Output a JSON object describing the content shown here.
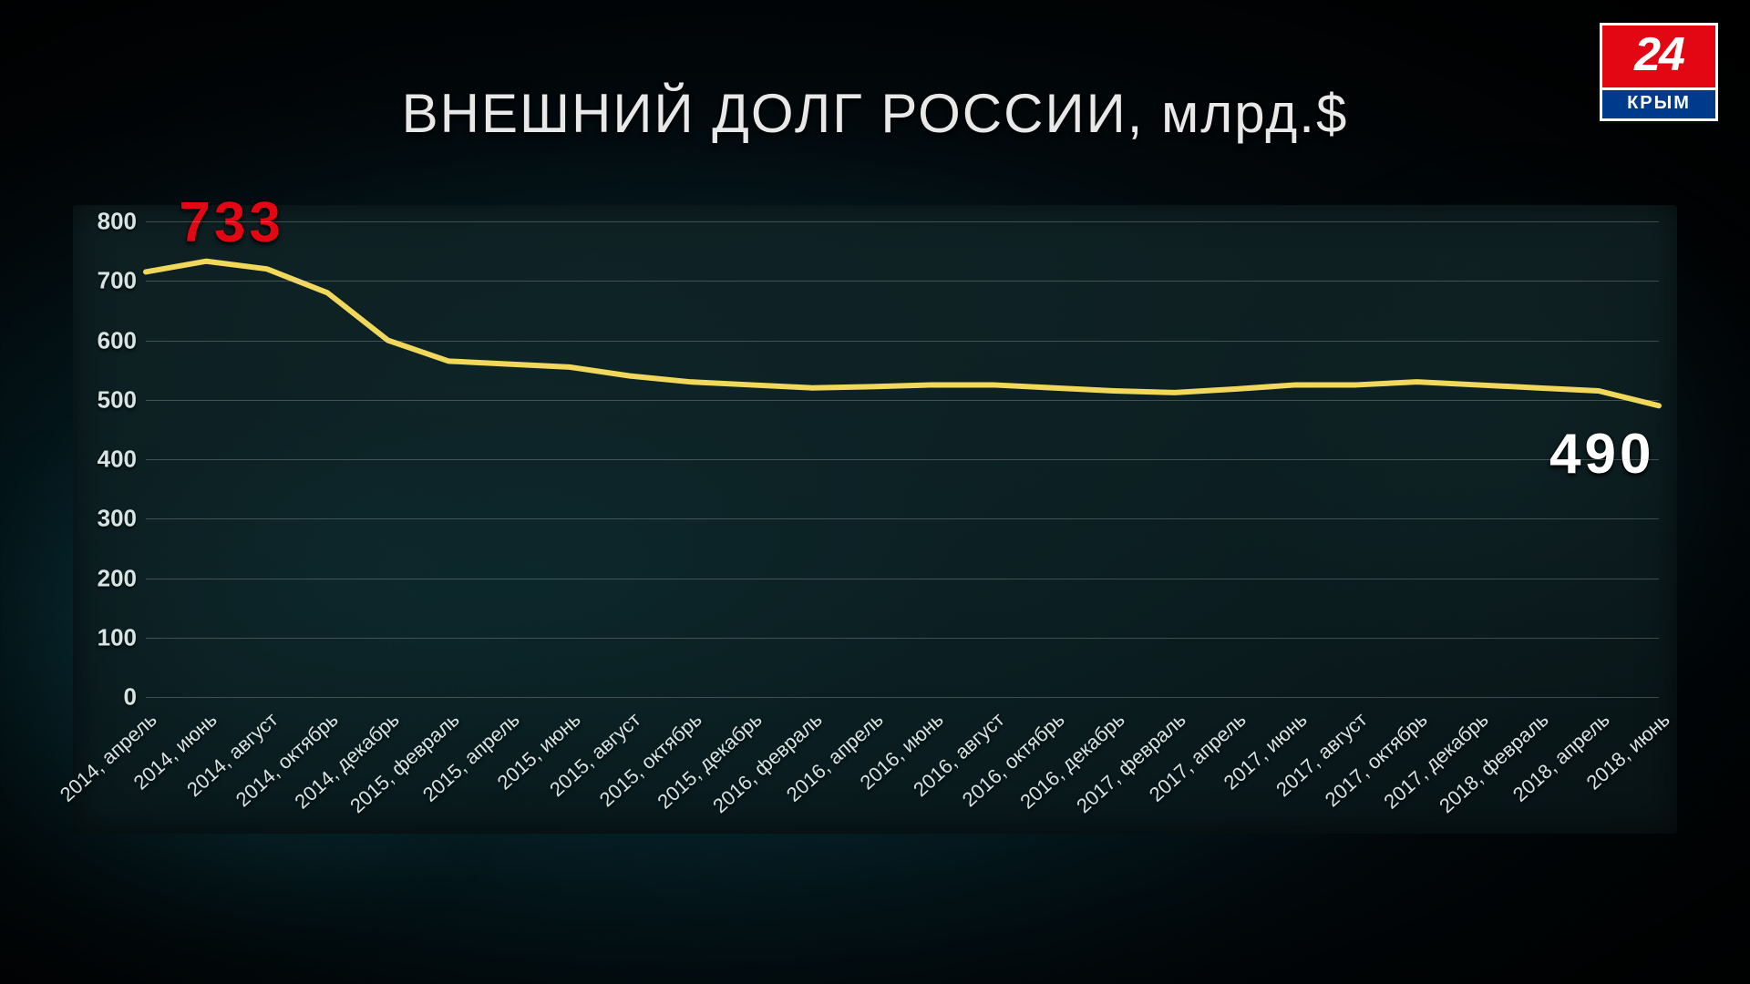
{
  "logo": {
    "number": "24",
    "text": "КРЫМ"
  },
  "title": "ВНЕШНИЙ ДОЛГ РОССИИ, млрд.$",
  "chart": {
    "type": "line",
    "background_color": "rgba(14,32,34,0.78)",
    "grid_color": "rgba(200,210,210,0.28)",
    "line_color": "#f2d85a",
    "line_width": 6,
    "ylim": [
      0,
      800
    ],
    "ytick_step": 100,
    "yticks": [
      0,
      100,
      200,
      300,
      400,
      500,
      600,
      700,
      800
    ],
    "label_color": "#d8e4e4",
    "ylabel_fontsize": 26,
    "xlabel_fontsize": 22,
    "xlabel_rotation_deg": -42,
    "categories": [
      "2014, апрель",
      "2014, июнь",
      "2014, август",
      "2014, октябрь",
      "2014, декабрь",
      "2015, февраль",
      "2015, апрель",
      "2015, июнь",
      "2015, август",
      "2015, октябрь",
      "2015, декабрь",
      "2016, февраль",
      "2016, апрель",
      "2016, июнь",
      "2016, август",
      "2016, октябрь",
      "2016, декабрь",
      "2017, февраль",
      "2017, апрель",
      "2017, июнь",
      "2017, август",
      "2017, октябрь",
      "2017, декабрь",
      "2018, февраль",
      "2018, апрель",
      "2018, июнь"
    ],
    "values": [
      715,
      733,
      720,
      680,
      600,
      565,
      560,
      555,
      540,
      530,
      525,
      520,
      522,
      525,
      525,
      520,
      515,
      512,
      518,
      525,
      525,
      530,
      525,
      520,
      515,
      490
    ],
    "callouts": {
      "peak": {
        "text": "733",
        "color": "#e30613",
        "fontsize": 62,
        "index": 1
      },
      "last": {
        "text": "490",
        "color": "#ffffff",
        "fontsize": 62,
        "index": 25
      }
    }
  }
}
